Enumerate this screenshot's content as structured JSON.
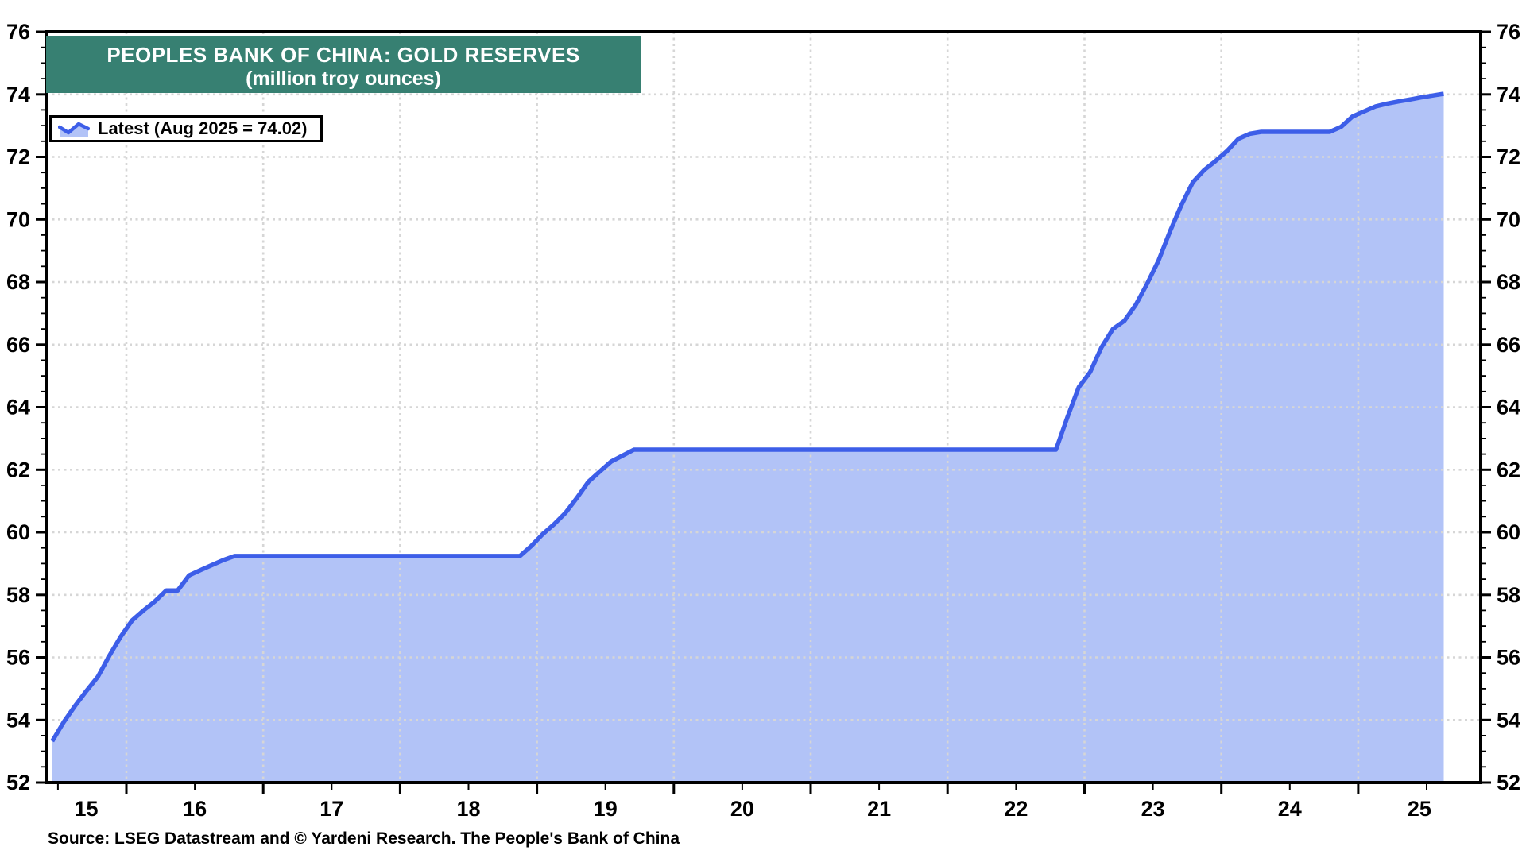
{
  "title": {
    "line1": "PEOPLES BANK OF CHINA: GOLD RESERVES",
    "line2": "(million troy ounces)"
  },
  "legend": {
    "icon": "area-series-icon",
    "label": "Latest (Aug 2025 = 74.02)"
  },
  "source": "Source: LSEG Datastream and © Yardeni Research. The People's Bank of China",
  "colors": {
    "line": "#3D5EE8",
    "fill": "#B2C3F7",
    "titleBg": "#378072",
    "titleText": "#FFFFFF",
    "grid": "#D6D6D6",
    "axis": "#000000"
  },
  "chart_data": {
    "type": "area",
    "title": "PEOPLES BANK OF CHINA: GOLD RESERVES",
    "subtitle": "(million troy ounces)",
    "ylabel": "million troy ounces",
    "series_name": "Latest (Aug 2025 = 74.02)",
    "latest_label": "Aug 2025",
    "latest_value": 74.02,
    "ylim": [
      52,
      76
    ],
    "y_tick_step": 2,
    "y_minor_step": 0.5,
    "x_tick_labels": [
      "15",
      "16",
      "17",
      "18",
      "19",
      "20",
      "21",
      "22",
      "23",
      "24",
      "25"
    ],
    "x_domain": [
      "2015-06",
      "2025-08"
    ],
    "grid": true,
    "legend_position": "top-left",
    "points": [
      [
        "2015-06",
        53.32
      ],
      [
        "2015-07",
        53.93
      ],
      [
        "2015-08",
        54.45
      ],
      [
        "2015-09",
        54.93
      ],
      [
        "2015-10",
        55.38
      ],
      [
        "2015-11",
        56.05
      ],
      [
        "2015-12",
        56.66
      ],
      [
        "2016-01",
        57.18
      ],
      [
        "2016-02",
        57.5
      ],
      [
        "2016-03",
        57.79
      ],
      [
        "2016-04",
        58.14
      ],
      [
        "2016-05",
        58.14
      ],
      [
        "2016-06",
        58.62
      ],
      [
        "2016-07",
        58.79
      ],
      [
        "2016-08",
        58.95
      ],
      [
        "2016-09",
        59.11
      ],
      [
        "2016-10",
        59.24
      ],
      [
        "2016-11",
        59.24
      ],
      [
        "2016-12",
        59.24
      ],
      [
        "2017-01",
        59.24
      ],
      [
        "2017-02",
        59.24
      ],
      [
        "2017-03",
        59.24
      ],
      [
        "2017-04",
        59.24
      ],
      [
        "2017-05",
        59.24
      ],
      [
        "2017-06",
        59.24
      ],
      [
        "2017-07",
        59.24
      ],
      [
        "2017-08",
        59.24
      ],
      [
        "2017-09",
        59.24
      ],
      [
        "2017-10",
        59.24
      ],
      [
        "2017-11",
        59.24
      ],
      [
        "2017-12",
        59.24
      ],
      [
        "2018-01",
        59.24
      ],
      [
        "2018-02",
        59.24
      ],
      [
        "2018-03",
        59.24
      ],
      [
        "2018-04",
        59.24
      ],
      [
        "2018-05",
        59.24
      ],
      [
        "2018-06",
        59.24
      ],
      [
        "2018-07",
        59.24
      ],
      [
        "2018-08",
        59.24
      ],
      [
        "2018-09",
        59.24
      ],
      [
        "2018-10",
        59.24
      ],
      [
        "2018-11",
        59.24
      ],
      [
        "2018-12",
        59.56
      ],
      [
        "2019-01",
        59.94
      ],
      [
        "2019-02",
        60.26
      ],
      [
        "2019-03",
        60.62
      ],
      [
        "2019-04",
        61.1
      ],
      [
        "2019-05",
        61.61
      ],
      [
        "2019-06",
        61.94
      ],
      [
        "2019-07",
        62.26
      ],
      [
        "2019-08",
        62.45
      ],
      [
        "2019-09",
        62.64
      ],
      [
        "2019-10",
        62.64
      ],
      [
        "2019-11",
        62.64
      ],
      [
        "2019-12",
        62.64
      ],
      [
        "2020-01",
        62.64
      ],
      [
        "2020-02",
        62.64
      ],
      [
        "2020-03",
        62.64
      ],
      [
        "2020-04",
        62.64
      ],
      [
        "2020-05",
        62.64
      ],
      [
        "2020-06",
        62.64
      ],
      [
        "2020-07",
        62.64
      ],
      [
        "2020-08",
        62.64
      ],
      [
        "2020-09",
        62.64
      ],
      [
        "2020-10",
        62.64
      ],
      [
        "2020-11",
        62.64
      ],
      [
        "2020-12",
        62.64
      ],
      [
        "2021-01",
        62.64
      ],
      [
        "2021-02",
        62.64
      ],
      [
        "2021-03",
        62.64
      ],
      [
        "2021-04",
        62.64
      ],
      [
        "2021-05",
        62.64
      ],
      [
        "2021-06",
        62.64
      ],
      [
        "2021-07",
        62.64
      ],
      [
        "2021-08",
        62.64
      ],
      [
        "2021-09",
        62.64
      ],
      [
        "2021-10",
        62.64
      ],
      [
        "2021-11",
        62.64
      ],
      [
        "2021-12",
        62.64
      ],
      [
        "2022-01",
        62.64
      ],
      [
        "2022-02",
        62.64
      ],
      [
        "2022-03",
        62.64
      ],
      [
        "2022-04",
        62.64
      ],
      [
        "2022-05",
        62.64
      ],
      [
        "2022-06",
        62.64
      ],
      [
        "2022-07",
        62.64
      ],
      [
        "2022-08",
        62.64
      ],
      [
        "2022-09",
        62.64
      ],
      [
        "2022-10",
        62.64
      ],
      [
        "2022-11",
        63.67
      ],
      [
        "2022-12",
        64.64
      ],
      [
        "2023-01",
        65.12
      ],
      [
        "2023-02",
        65.92
      ],
      [
        "2023-03",
        66.5
      ],
      [
        "2023-04",
        66.76
      ],
      [
        "2023-05",
        67.27
      ],
      [
        "2023-06",
        67.95
      ],
      [
        "2023-07",
        68.69
      ],
      [
        "2023-08",
        69.62
      ],
      [
        "2023-09",
        70.46
      ],
      [
        "2023-10",
        71.19
      ],
      [
        "2023-11",
        71.58
      ],
      [
        "2023-12",
        71.87
      ],
      [
        "2024-01",
        72.19
      ],
      [
        "2024-02",
        72.58
      ],
      [
        "2024-03",
        72.74
      ],
      [
        "2024-04",
        72.8
      ],
      [
        "2024-05",
        72.8
      ],
      [
        "2024-06",
        72.8
      ],
      [
        "2024-07",
        72.8
      ],
      [
        "2024-08",
        72.8
      ],
      [
        "2024-09",
        72.8
      ],
      [
        "2024-10",
        72.8
      ],
      [
        "2024-11",
        72.96
      ],
      [
        "2024-12",
        73.29
      ],
      [
        "2025-01",
        73.45
      ],
      [
        "2025-02",
        73.61
      ],
      [
        "2025-03",
        73.7
      ],
      [
        "2025-04",
        73.77
      ],
      [
        "2025-05",
        73.83
      ],
      [
        "2025-06",
        73.9
      ],
      [
        "2025-07",
        73.96
      ],
      [
        "2025-08",
        74.02
      ]
    ]
  }
}
